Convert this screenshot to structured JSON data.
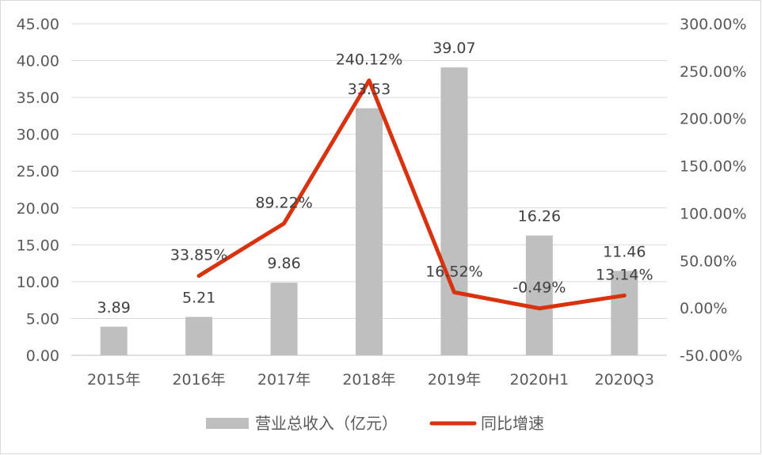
{
  "chart_data": {
    "type": "bar",
    "categories": [
      "2015年",
      "2016年",
      "2017年",
      "2018年",
      "2019年",
      "2020H1",
      "2020Q3"
    ],
    "series": [
      {
        "name": "营业总收入（亿元）",
        "type": "bar",
        "axis": "left",
        "values": [
          3.89,
          5.21,
          9.86,
          33.53,
          39.07,
          16.26,
          11.46
        ],
        "labels": [
          "3.89",
          "5.21",
          "9.86",
          "33.53",
          "39.07",
          "16.26",
          "11.46"
        ],
        "color": "#bfbfbf"
      },
      {
        "name": "同比增速",
        "type": "line",
        "axis": "right",
        "values": [
          null,
          33.85,
          89.22,
          240.12,
          16.52,
          -0.49,
          13.14
        ],
        "labels": [
          "",
          "33.85%",
          "89.22%",
          "240.12%",
          "16.52%",
          "-0.49%",
          "13.14%"
        ],
        "color": "#d9320f"
      }
    ],
    "y_left": {
      "ylim": [
        0,
        45
      ],
      "ticks": [
        "0.00",
        "5.00",
        "10.00",
        "15.00",
        "20.00",
        "25.00",
        "30.00",
        "35.00",
        "40.00",
        "45.00"
      ]
    },
    "y_right": {
      "ylim": [
        -50,
        300
      ],
      "ticks": [
        "-50.00%",
        "0.00%",
        "50.00%",
        "100.00%",
        "150.00%",
        "200.00%",
        "250.00%",
        "300.00%"
      ]
    },
    "grid": true,
    "legend": "bottom"
  }
}
